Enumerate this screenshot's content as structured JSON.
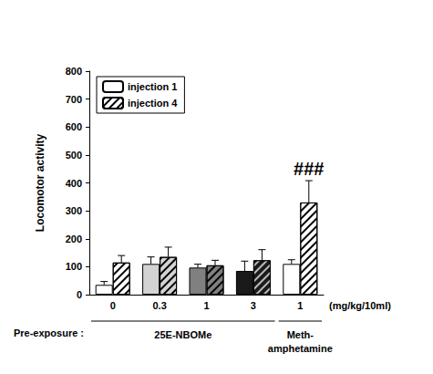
{
  "chart_data": {
    "type": "bar",
    "ylabel": "Locomotor activity",
    "xlabel": "(mg/kg/10ml)",
    "categories": [
      "0",
      "0.3",
      "1",
      "3",
      "1"
    ],
    "group_title": "Pre-exposure :",
    "groups": [
      {
        "label": "25E-NBOMe",
        "span": [
          0,
          3
        ]
      },
      {
        "label": "Meth-\namphetamine",
        "span": [
          4,
          4
        ]
      }
    ],
    "series": [
      {
        "name": "injection 1",
        "line_style": "solid",
        "colors": [
          "#ffffff",
          "#d3d3d3",
          "#808080",
          "#1a1a1a",
          "#ffffff"
        ],
        "values": [
          35,
          110,
          97,
          85,
          110
        ],
        "errors": [
          12,
          25,
          12,
          35,
          15
        ]
      },
      {
        "name": "injection 4",
        "line_style": "hatched",
        "colors": [
          "#ffffff",
          "#d3d3d3",
          "#808080",
          "#1a1a1a",
          "#ffffff"
        ],
        "values": [
          115,
          135,
          105,
          123,
          330
        ],
        "errors": [
          25,
          35,
          18,
          38,
          78
        ],
        "significance": [
          null,
          null,
          null,
          null,
          "###"
        ]
      }
    ],
    "ylim": [
      0,
      800
    ],
    "yticks": [
      0,
      100,
      200,
      300,
      400,
      500,
      600,
      700,
      800
    ],
    "legend": "upper left",
    "grid": false
  }
}
